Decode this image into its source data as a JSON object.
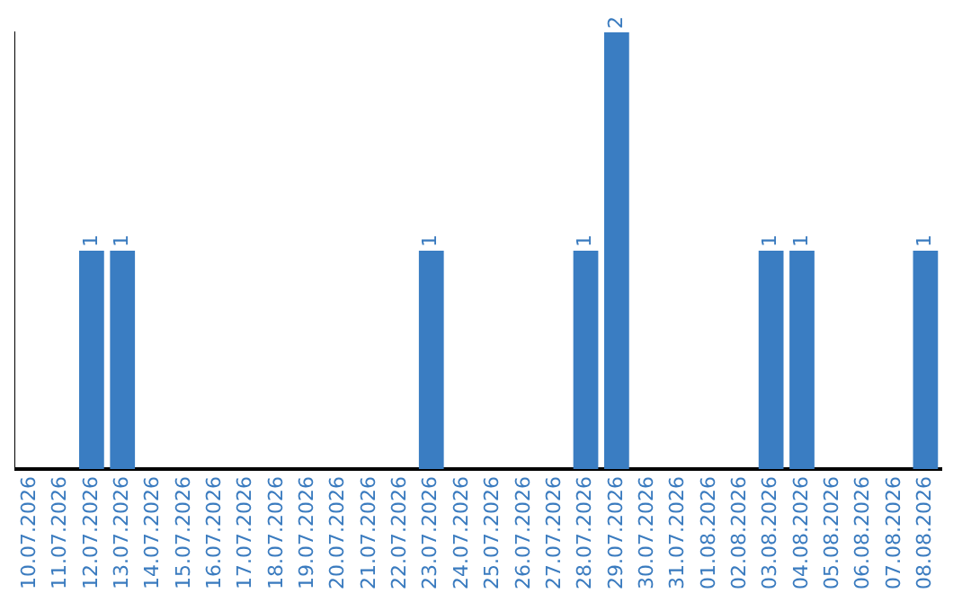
{
  "chart_data": {
    "type": "bar",
    "categories": [
      "10.07.2026",
      "11.07.2026",
      "12.07.2026",
      "13.07.2026",
      "14.07.2026",
      "15.07.2026",
      "16.07.2026",
      "17.07.2026",
      "18.07.2026",
      "19.07.2026",
      "20.07.2026",
      "21.07.2026",
      "22.07.2026",
      "23.07.2026",
      "24.07.2026",
      "25.07.2026",
      "26.07.2026",
      "27.07.2026",
      "28.07.2026",
      "29.07.2026",
      "30.07.2026",
      "31.07.2026",
      "01.08.2026",
      "02.08.2026",
      "03.08.2026",
      "04.08.2026",
      "05.08.2026",
      "06.08.2026",
      "07.08.2026",
      "08.08.2026"
    ],
    "values": [
      0,
      0,
      1,
      1,
      0,
      0,
      0,
      0,
      0,
      0,
      0,
      0,
      0,
      1,
      0,
      0,
      0,
      0,
      1,
      2,
      0,
      0,
      0,
      0,
      1,
      1,
      0,
      0,
      0,
      1
    ],
    "value_labels": [
      null,
      null,
      "1",
      "1",
      null,
      null,
      null,
      null,
      null,
      null,
      null,
      null,
      null,
      "1",
      null,
      null,
      null,
      null,
      "1",
      "2",
      null,
      null,
      null,
      null,
      "1",
      "1",
      null,
      null,
      null,
      "1"
    ],
    "color": "#3a7dc2",
    "grid": false,
    "legend": false,
    "tick_labels": "x"
  }
}
